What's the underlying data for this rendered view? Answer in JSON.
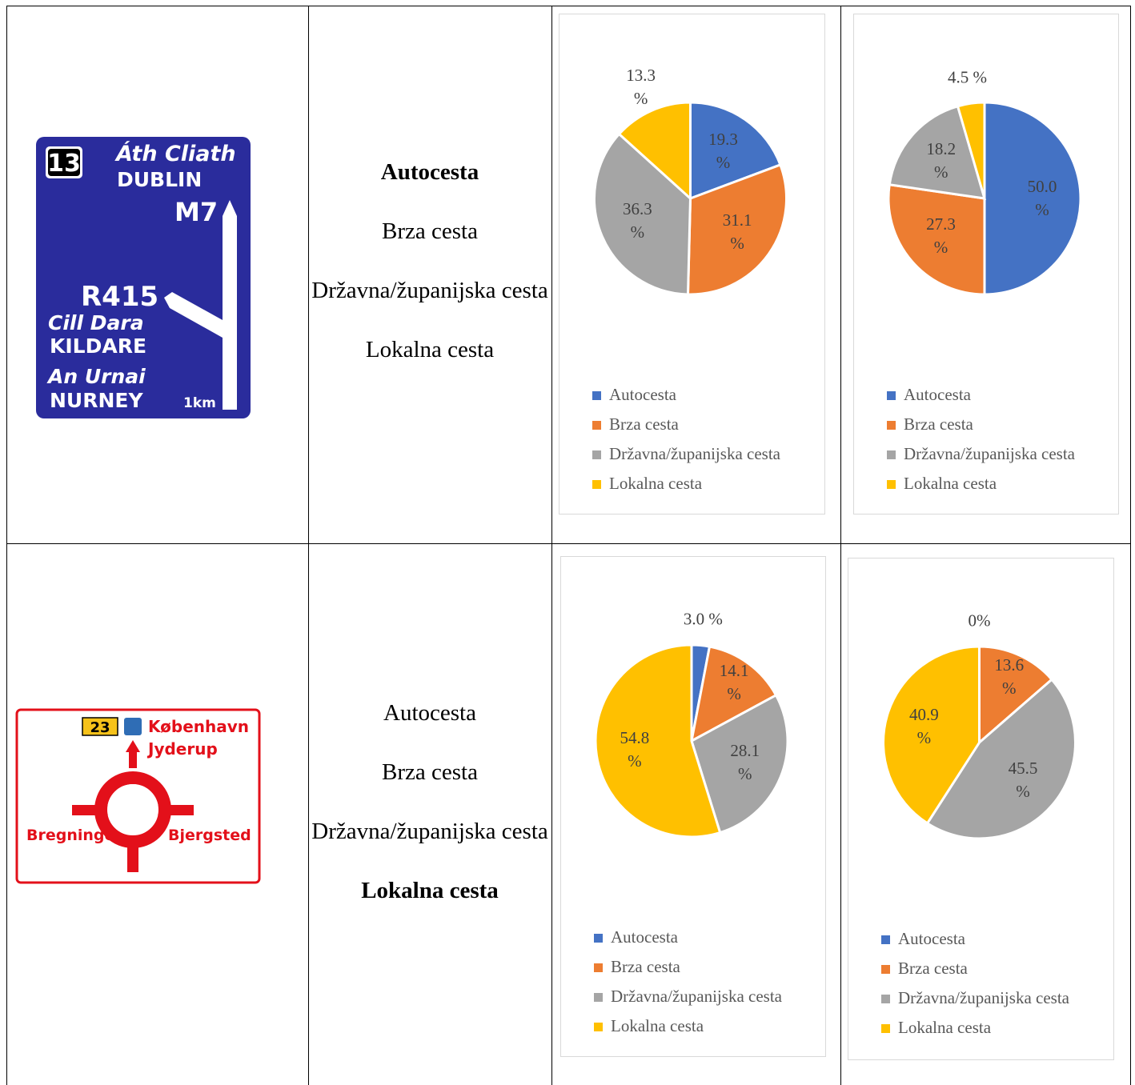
{
  "table": {
    "rows": [
      {
        "sign": {
          "exit": "13",
          "irish_dest": "Áth Cliath",
          "dest": "DUBLIN",
          "road": "M7",
          "road2": "R415",
          "irish_dest2": "Cill Dara",
          "dest2": "KILDARE",
          "irish_dest3": "An Urnai",
          "dest3": "NURNEY",
          "distance": "1km"
        },
        "road_types": [
          "Autocesta",
          "Brza cesta",
          "Državna/županijska cesta",
          "Lokalna cesta"
        ],
        "bold_index": 0
      },
      {
        "sign": {
          "route": "23",
          "dest": "København",
          "dest2": "Jyderup",
          "left": "Bregninge",
          "right": "Bjergsted"
        },
        "road_types": [
          "Autocesta",
          "Brza cesta",
          "Državna/županijska cesta",
          "Lokalna cesta"
        ],
        "bold_index": 3
      }
    ]
  },
  "chart_data": [
    {
      "type": "pie",
      "categories": [
        "Autocesta",
        "Brza cesta",
        "Državna/županijska cesta",
        "Lokalna cesta"
      ],
      "values": [
        19.3,
        31.1,
        36.3,
        13.3
      ],
      "value_labels": [
        "19.3 %",
        "31.1 %",
        "36.3 %",
        "13.3 %"
      ],
      "colors": [
        "#4472c4",
        "#ed7d31",
        "#a5a5a5",
        "#ffc000"
      ],
      "legend": "bottom"
    },
    {
      "type": "pie",
      "categories": [
        "Autocesta",
        "Brza cesta",
        "Državna/županijska cesta",
        "Lokalna cesta"
      ],
      "values": [
        50.0,
        27.3,
        18.2,
        4.5
      ],
      "value_labels": [
        "50.0 %",
        "27.3 %",
        "18.2 %",
        "4.5 %"
      ],
      "colors": [
        "#4472c4",
        "#ed7d31",
        "#a5a5a5",
        "#ffc000"
      ],
      "legend": "bottom"
    },
    {
      "type": "pie",
      "categories": [
        "Autocesta",
        "Brza cesta",
        "Državna/županijska cesta",
        "Lokalna cesta"
      ],
      "values": [
        3.0,
        14.1,
        28.1,
        54.8
      ],
      "value_labels": [
        "3.0 %",
        "14.1 %",
        "28.1 %",
        "54.8 %"
      ],
      "colors": [
        "#4472c4",
        "#ed7d31",
        "#a5a5a5",
        "#ffc000"
      ],
      "legend": "bottom"
    },
    {
      "type": "pie",
      "categories": [
        "Autocesta",
        "Brza cesta",
        "Državna/županijska cesta",
        "Lokalna cesta"
      ],
      "values": [
        0,
        13.6,
        45.5,
        40.9
      ],
      "value_labels": [
        "0%",
        "13.6 %",
        "45.5 %",
        "40.9 %"
      ],
      "colors": [
        "#4472c4",
        "#ed7d31",
        "#a5a5a5",
        "#ffc000"
      ],
      "legend": "bottom"
    }
  ]
}
